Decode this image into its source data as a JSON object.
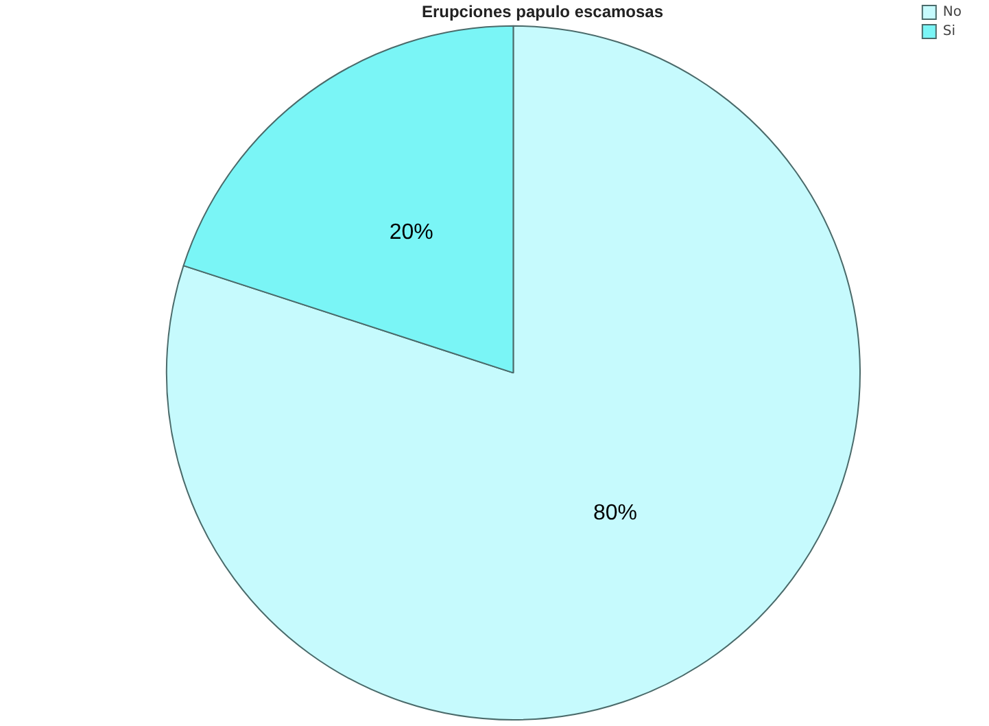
{
  "chart_data": {
    "type": "pie",
    "title": "Erupciones papulo escamosas",
    "categories": [
      "No",
      "Si"
    ],
    "values": [
      80,
      20
    ],
    "colors": [
      "#c6fafd",
      "#7af5f6"
    ],
    "value_labels": [
      "80%",
      "20%"
    ],
    "legend": "top right"
  }
}
